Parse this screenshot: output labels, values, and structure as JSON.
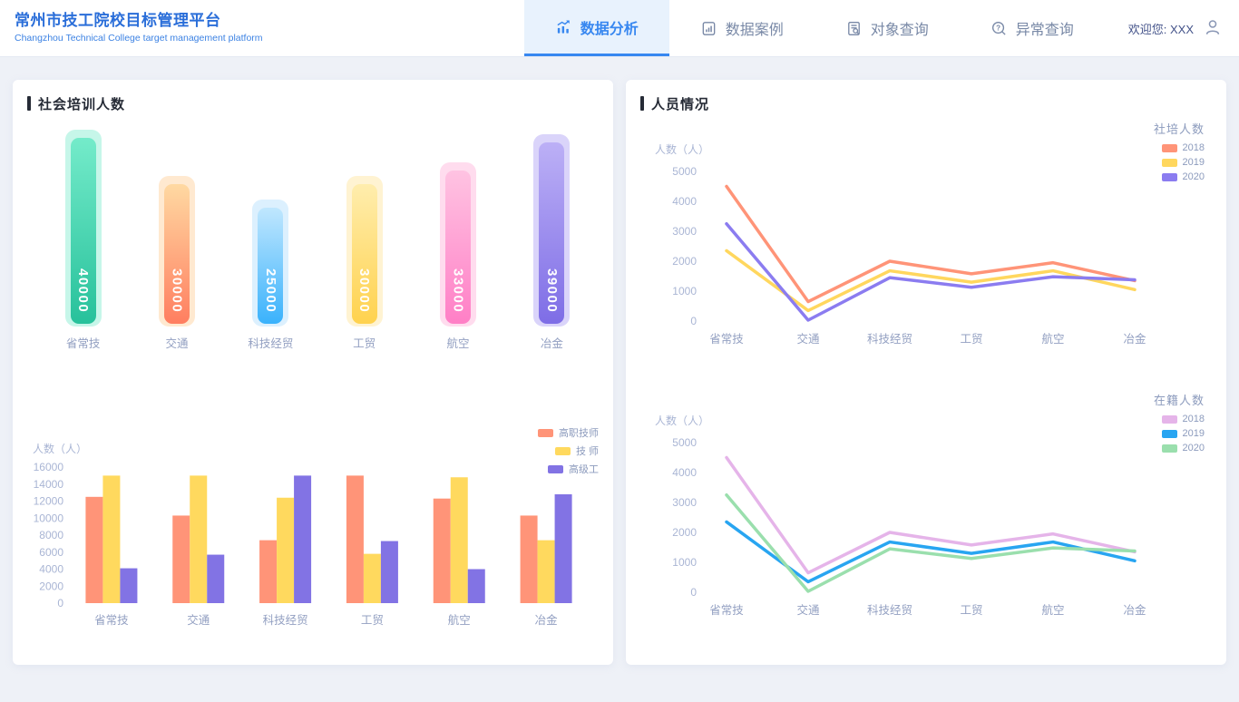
{
  "header": {
    "title": "常州市技工院校目标管理平台",
    "subtitle": "Changzhou Technical College target management platform",
    "tabs": [
      {
        "label": "数据分析",
        "icon": "bar-chart-trend-icon",
        "active": true
      },
      {
        "label": "数据案例",
        "icon": "report-document-icon",
        "active": false
      },
      {
        "label": "对象查询",
        "icon": "document-search-icon",
        "active": false
      },
      {
        "label": "异常查询",
        "icon": "search-question-icon",
        "active": false
      }
    ],
    "welcome": "欢迎您: XXX",
    "user_icon": "user-icon"
  },
  "colors": {
    "primary": "#3787f0",
    "active_tab_bg": "#e8f2fd",
    "page_bg": "#eef1f7",
    "panel_bg": "#ffffff",
    "title_text": "#262b36",
    "axis_text": "#a9b5d4",
    "category_text": "#93a0c2",
    "legend_text": "#8c9bbd"
  },
  "left_panel": {
    "title": "社会培训人数"
  },
  "right_panel": {
    "title": "人员情况"
  },
  "chart_data": [
    {
      "id": "social-training-bar",
      "type": "bar",
      "title": "社会培训人数",
      "categories": [
        "省常技",
        "交通",
        "科技经贸",
        "工贸",
        "航空",
        "冶金"
      ],
      "values": [
        40000,
        30000,
        25000,
        30000,
        33000,
        39000
      ],
      "ylim": [
        0,
        40000
      ],
      "grid": false,
      "bar_styles": [
        {
          "top": "#74ebca",
          "bottom": "#27c19b",
          "halo": "#c6f6e9"
        },
        {
          "top": "#ffd9a2",
          "bottom": "#ff7e60",
          "halo": "#ffe9d0"
        },
        {
          "top": "#c0e7fe",
          "bottom": "#3ab2fc",
          "halo": "#dcf0fe"
        },
        {
          "top": "#ffedad",
          "bottom": "#ffd24e",
          "halo": "#fff3d2"
        },
        {
          "top": "#ffc3e2",
          "bottom": "#ff7fc6",
          "halo": "#ffdcee"
        },
        {
          "top": "#bcb0f6",
          "bottom": "#7e6de6",
          "halo": "#dad4fa"
        }
      ]
    },
    {
      "id": "staff-level-bar",
      "type": "bar",
      "ylabel": "人数（人）",
      "categories": [
        "省常技",
        "交通",
        "科技经贸",
        "工贸",
        "航空",
        "冶金"
      ],
      "series": [
        {
          "name": "高职技师",
          "color": "#ff9478",
          "values": [
            12500,
            10300,
            7400,
            15000,
            12300,
            10300
          ]
        },
        {
          "name": "技 师",
          "color": "#ffd95e",
          "values": [
            15000,
            15000,
            12400,
            5800,
            14800,
            7400
          ]
        },
        {
          "name": "高级工",
          "color": "#8273e4",
          "values": [
            4100,
            5700,
            15000,
            7300,
            4000,
            12800
          ]
        }
      ],
      "ylim": [
        0,
        16000
      ],
      "ytick_step": 2000,
      "legend_position": "top-right",
      "grid": false
    },
    {
      "id": "social-training-line",
      "type": "line",
      "legend_title": "社培人数",
      "ylabel": "人数（人）",
      "categories": [
        "省常技",
        "交通",
        "科技经贸",
        "工贸",
        "航空",
        "冶金"
      ],
      "series": [
        {
          "name": "2018",
          "color": "#ff9478",
          "values": [
            4500,
            650,
            2000,
            1580,
            1950,
            1350
          ]
        },
        {
          "name": "2019",
          "color": "#ffd75e",
          "values": [
            2350,
            350,
            1680,
            1300,
            1680,
            1050
          ]
        },
        {
          "name": "2020",
          "color": "#8b7cf0",
          "values": [
            3250,
            30,
            1450,
            1130,
            1480,
            1380
          ]
        }
      ],
      "ylim": [
        0,
        5000
      ],
      "ytick_step": 1000,
      "legend_position": "right",
      "grid": false
    },
    {
      "id": "enrolled-line",
      "type": "line",
      "legend_title": "在籍人数",
      "ylabel": "人数（人）",
      "categories": [
        "省常技",
        "交通",
        "科技经贸",
        "工贸",
        "航空",
        "冶金"
      ],
      "series": [
        {
          "name": "2018",
          "color": "#e5b4e9",
          "values": [
            4500,
            650,
            2000,
            1580,
            1950,
            1350
          ]
        },
        {
          "name": "2019",
          "color": "#28a5f1",
          "values": [
            2350,
            350,
            1680,
            1300,
            1680,
            1050
          ]
        },
        {
          "name": "2020",
          "color": "#9adfad",
          "values": [
            3250,
            30,
            1450,
            1130,
            1480,
            1380
          ]
        }
      ],
      "ylim": [
        0,
        5000
      ],
      "ytick_step": 1000,
      "legend_position": "right",
      "grid": false
    }
  ]
}
